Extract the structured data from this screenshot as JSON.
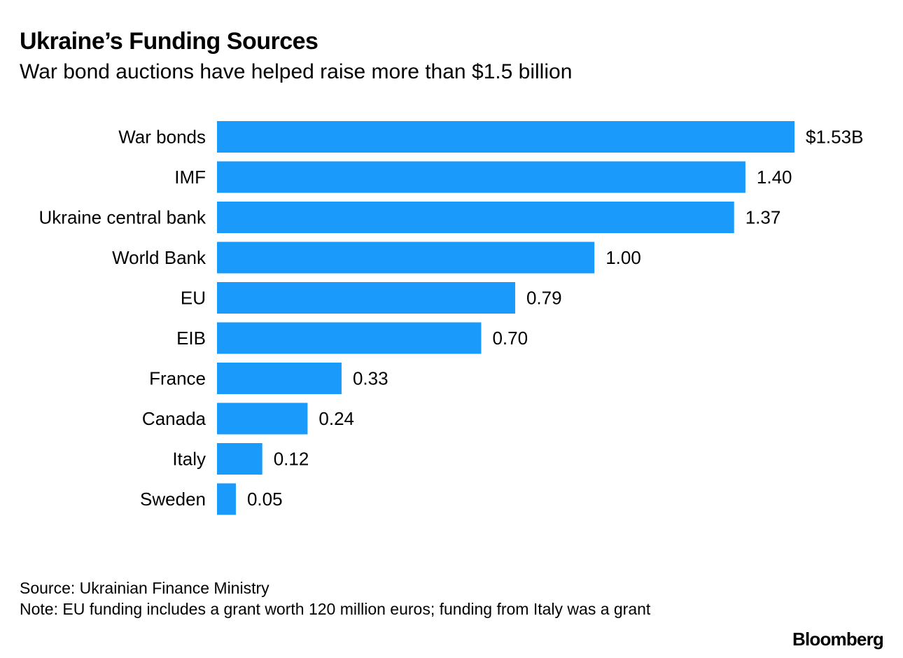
{
  "header": {
    "title": "Ukraine’s Funding Sources",
    "subtitle": "War bond auctions have helped raise more than $1.5 billion"
  },
  "footer": {
    "source": "Source: Ukrainian Finance Ministry",
    "note": "Note: EU funding includes a grant worth 120 million euros; funding from Italy was a grant",
    "brand": "Bloomberg"
  },
  "colors": {
    "bar": "#1a9bfb"
  },
  "chart_data": {
    "type": "bar",
    "orientation": "horizontal",
    "title": "Ukraine’s Funding Sources",
    "subtitle": "War bond auctions have helped raise more than $1.5 billion",
    "unit": "billion USD",
    "categories": [
      "War bonds",
      "IMF",
      "Ukraine central bank",
      "World Bank",
      "EU",
      "EIB",
      "France",
      "Canada",
      "Italy",
      "Sweden"
    ],
    "values": [
      1.53,
      1.4,
      1.37,
      1.0,
      0.79,
      0.7,
      0.33,
      0.24,
      0.12,
      0.05
    ],
    "value_labels": [
      "$1.53B",
      "1.40",
      "1.37",
      "1.00",
      "0.79",
      "0.70",
      "0.33",
      "0.24",
      "0.12",
      "0.05"
    ],
    "xlim": [
      0,
      1.53
    ],
    "xlabel": "",
    "ylabel": "",
    "grid": false
  }
}
